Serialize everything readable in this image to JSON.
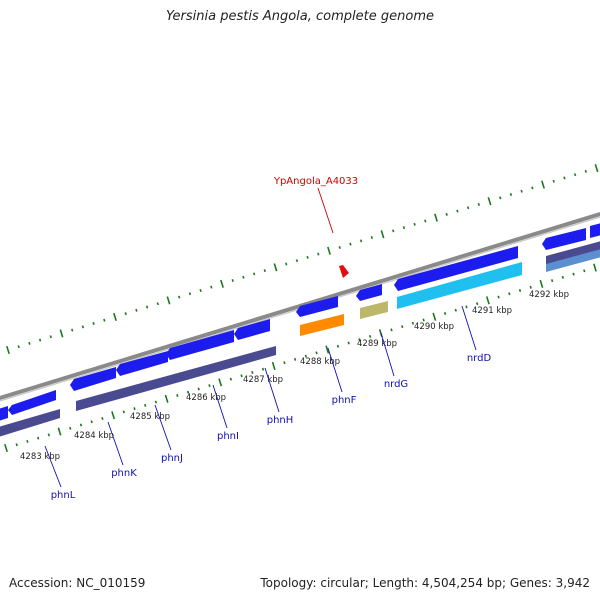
{
  "title": "Yersinia pestis Angola, complete genome",
  "footer": {
    "accession": "Accession: NC_010159",
    "summary": "Topology: circular; Length: 4,504,254 bp; Genes: 3,942"
  },
  "highlight_label": "YpAngola_A4033",
  "colors": {
    "backbone": "#8a8a8a",
    "tick": "#1a7a1a",
    "gene_forward": "#1c1cee",
    "cds_blue": "#4a4a90",
    "highlight_label": "#d40000",
    "marker": "#e01010",
    "orange": "#ff8a00",
    "khaki": "#bdb76b",
    "cyan": "#1fc0ef",
    "gene_label": "#1010b0"
  },
  "kbp_labels": [
    "4283 kbp",
    "4284 kbp",
    "4285 kbp",
    "4286 kbp",
    "4287 kbp",
    "4288 kbp",
    "4289 kbp",
    "4290 kbp",
    "4291 kbp",
    "4292 kbp"
  ],
  "gene_labels": [
    "phnL",
    "phnK",
    "phnJ",
    "phnI",
    "phnH",
    "phnF",
    "nrdG",
    "nrdD"
  ]
}
